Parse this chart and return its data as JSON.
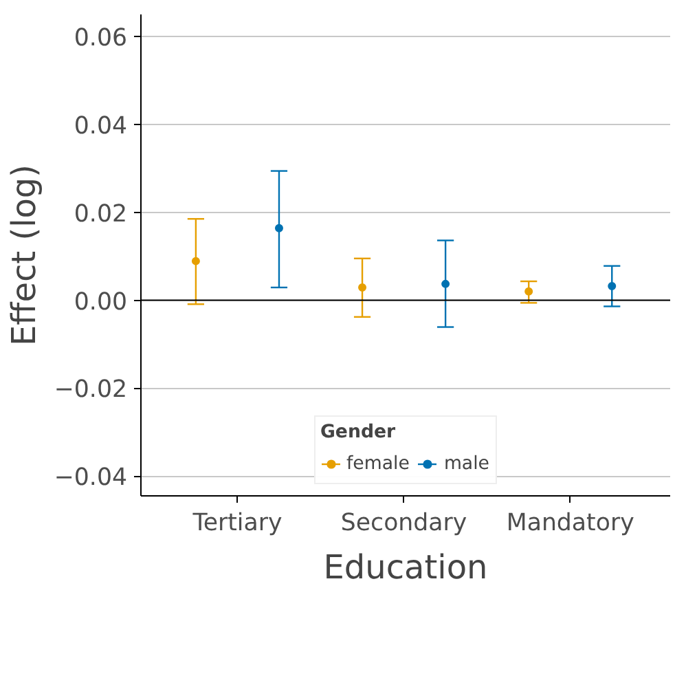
{
  "chart_data": {
    "type": "scatter",
    "xlabel": "Education",
    "ylabel": "Effect (log)",
    "legend_title": "Gender",
    "categories": [
      "Tertiary",
      "Secondary",
      "Mandatory"
    ],
    "series": [
      {
        "name": "female",
        "color": "#e69f00",
        "values": [
          0.0089,
          0.0029,
          0.002
        ],
        "errors": [
          [
            -0.0009,
            0.0185
          ],
          [
            -0.0038,
            0.0095
          ],
          [
            -0.0006,
            0.0043
          ]
        ]
      },
      {
        "name": "male",
        "color": "#0072b2",
        "values": [
          0.0164,
          0.0037,
          0.0032
        ],
        "errors": [
          [
            0.0029,
            0.0294
          ],
          [
            -0.0061,
            0.0136
          ],
          [
            -0.0014,
            0.0078
          ]
        ]
      }
    ],
    "ylim": [
      -0.0445,
      0.065
    ],
    "yticks": [
      {
        "value": -0.04,
        "label": "−0.04"
      },
      {
        "value": -0.02,
        "label": "−0.02"
      },
      {
        "value": 0,
        "label": "0.00"
      },
      {
        "value": 0.02,
        "label": "0.02"
      },
      {
        "value": 0.04,
        "label": "0.04"
      },
      {
        "value": 0.06,
        "label": "0.06"
      }
    ],
    "ref_lines": [
      {
        "axis": "y",
        "value": 0,
        "color": "#000000"
      }
    ],
    "grid": "y",
    "legend": "bottom",
    "marker": "circle"
  }
}
